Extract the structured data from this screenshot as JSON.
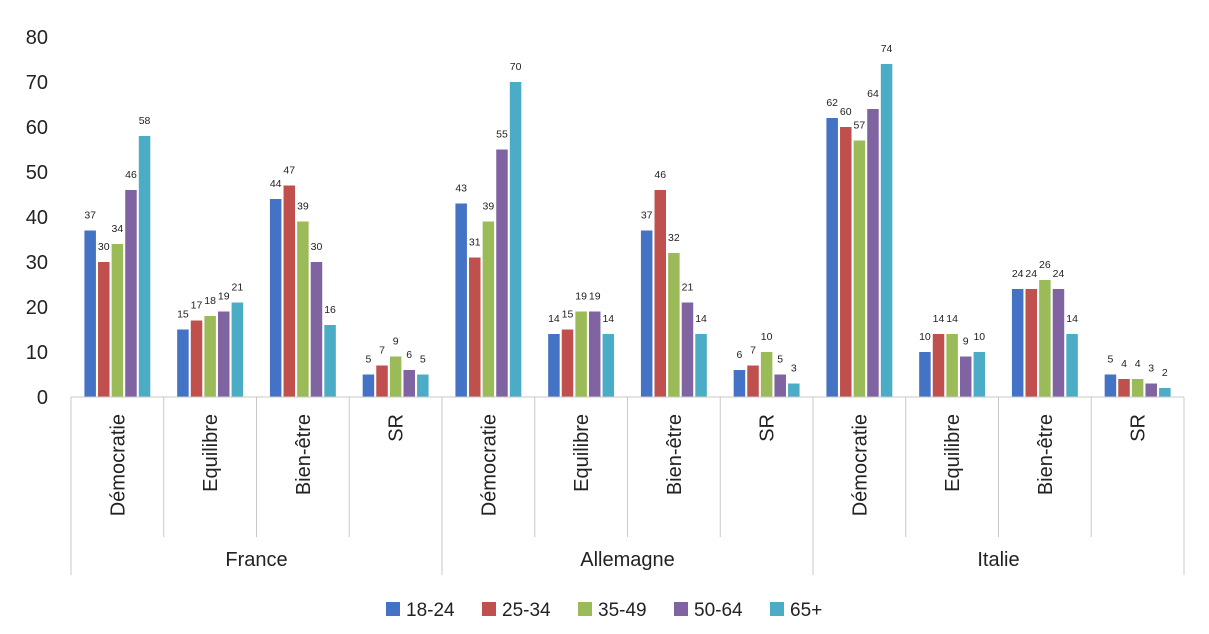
{
  "chart_data": {
    "type": "bar",
    "ylim": [
      0,
      80
    ],
    "yticks": [
      "0",
      "10",
      "20",
      "30",
      "40",
      "50",
      "60",
      "70",
      "80"
    ],
    "grid": false,
    "legend_position": "bottom",
    "colors": [
      "#4472C4",
      "#C0504D",
      "#9BBB59",
      "#8064A2",
      "#4BACC6"
    ],
    "groups": [
      {
        "name": "France",
        "categories": [
          "Démocratie",
          "Equilibre",
          "Bien-être",
          "SR"
        ],
        "series": [
          {
            "name": "18-24",
            "values": [
              37,
              15,
              44,
              5
            ]
          },
          {
            "name": "25-34",
            "values": [
              30,
              17,
              47,
              7
            ]
          },
          {
            "name": "35-49",
            "values": [
              34,
              18,
              39,
              9
            ]
          },
          {
            "name": "50-64",
            "values": [
              46,
              19,
              30,
              6
            ]
          },
          {
            "name": "65+",
            "values": [
              58,
              21,
              16,
              5
            ]
          }
        ]
      },
      {
        "name": "Allemagne",
        "categories": [
          "Démocratie",
          "Equilibre",
          "Bien-être",
          "SR"
        ],
        "series": [
          {
            "name": "18-24",
            "values": [
              43,
              14,
              37,
              6
            ]
          },
          {
            "name": "25-34",
            "values": [
              31,
              15,
              46,
              7
            ]
          },
          {
            "name": "35-49",
            "values": [
              39,
              19,
              32,
              10
            ]
          },
          {
            "name": "50-64",
            "values": [
              55,
              19,
              21,
              5
            ]
          },
          {
            "name": "65+",
            "values": [
              70,
              14,
              14,
              3
            ]
          }
        ]
      },
      {
        "name": "Italie",
        "categories": [
          "Démocratie",
          "Equilibre",
          "Bien-être",
          "SR"
        ],
        "series": [
          {
            "name": "18-24",
            "values": [
              62,
              10,
              24,
              5
            ]
          },
          {
            "name": "25-34",
            "values": [
              60,
              14,
              24,
              4
            ]
          },
          {
            "name": "35-49",
            "values": [
              57,
              14,
              26,
              4
            ]
          },
          {
            "name": "50-64",
            "values": [
              64,
              9,
              24,
              3
            ]
          },
          {
            "name": "65+",
            "values": [
              74,
              10,
              14,
              2
            ]
          }
        ]
      }
    ],
    "legend": [
      "18-24",
      "25-34",
      "35-49",
      "50-64",
      "65+"
    ]
  }
}
